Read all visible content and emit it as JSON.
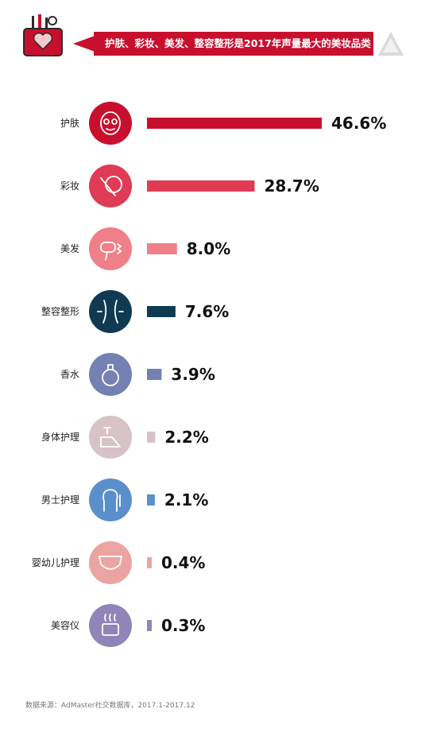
{
  "header": {
    "title": "护肤、彩妆、美发、整容整形是2017年声量最大的美妆品类"
  },
  "chart_data": {
    "type": "bar",
    "orientation": "horizontal",
    "title": "护肤、彩妆、美发、整容整形是2017年声量最大的美妆品类",
    "categories": [
      "护肤",
      "彩妆",
      "美发",
      "整容整形",
      "香水",
      "身体护理",
      "男士护理",
      "婴幼儿护理",
      "美容仪"
    ],
    "values": [
      46.6,
      28.7,
      8.0,
      7.6,
      3.9,
      2.2,
      2.1,
      0.4,
      0.3
    ],
    "value_labels": [
      "46.6%",
      "28.7%",
      "8.0%",
      "7.6%",
      "3.9%",
      "2.2%",
      "2.1%",
      "0.4%",
      "0.3%"
    ],
    "colors": [
      "#c8102e",
      "#e03b55",
      "#ef7f88",
      "#0f3a52",
      "#7580b3",
      "#d7c2c7",
      "#5b8fcb",
      "#eba4a0",
      "#8f85b8"
    ],
    "icons": [
      "face-mask-icon",
      "makeup-brush-icon",
      "hair-dryer-icon",
      "body-contour-icon",
      "perfume-bottle-icon",
      "foot-care-icon",
      "man-profile-icon",
      "diaper-icon",
      "beauty-device-icon"
    ],
    "grid": false,
    "legend": "none"
  },
  "footer": {
    "source": "数据来源：AdMaster社交数据库，2017.1-2017.12"
  }
}
